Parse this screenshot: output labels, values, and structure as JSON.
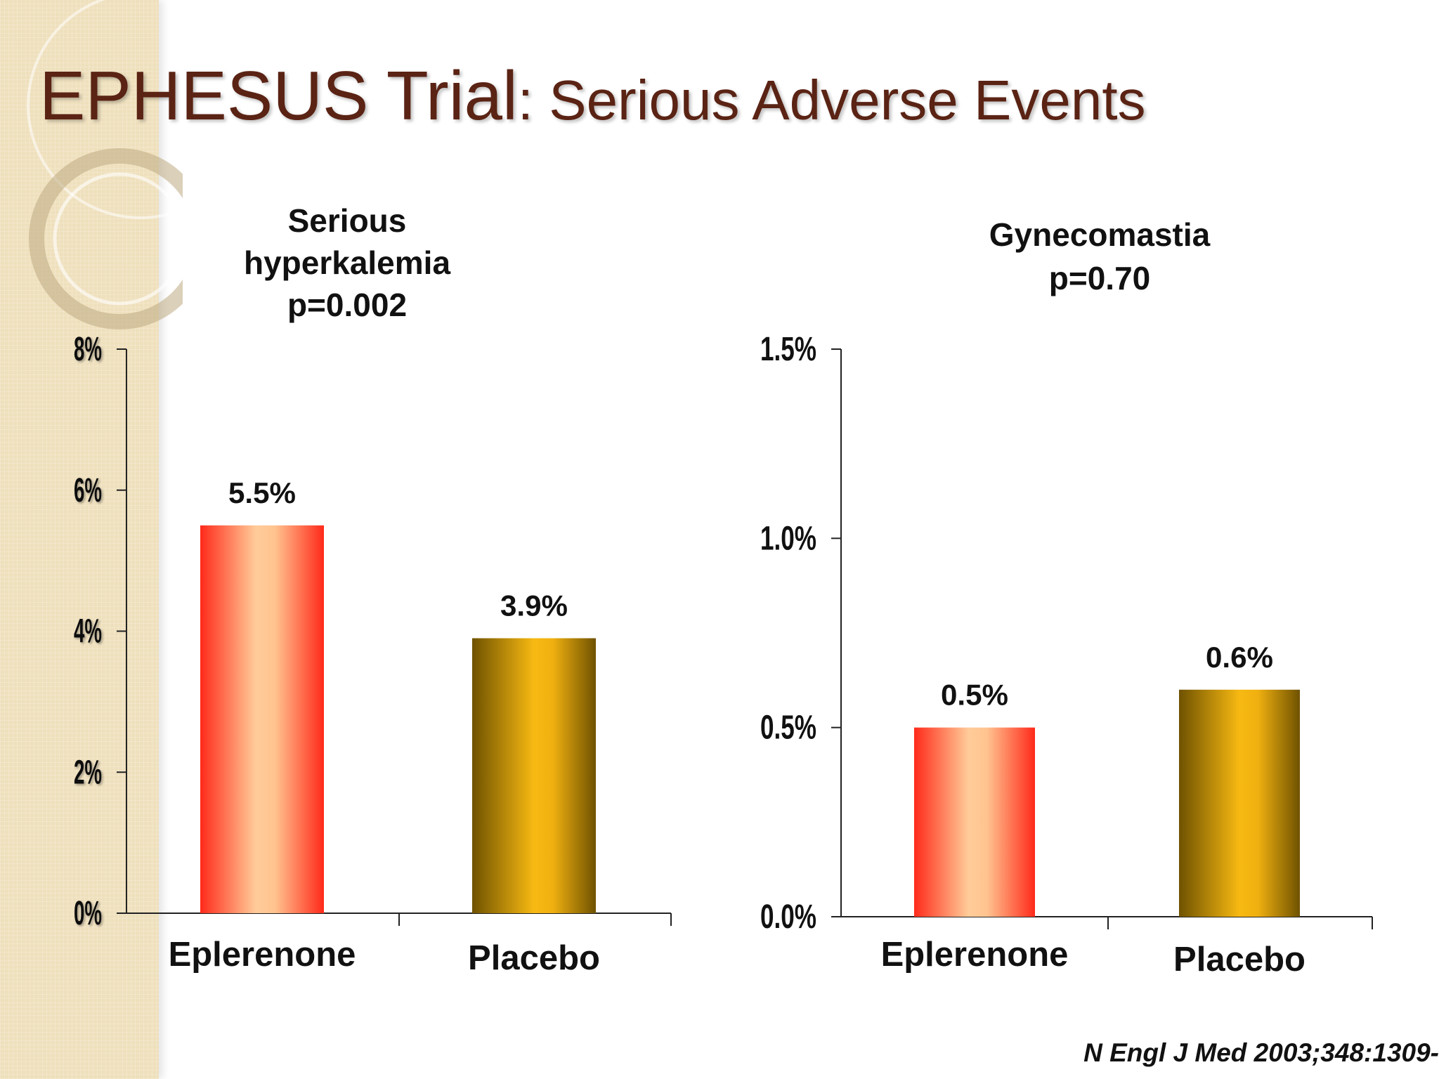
{
  "slide": {
    "title_main": "EPHESUS Trial",
    "title_sub": ": Serious Adverse Events",
    "citation": "N Engl J Med 2003;348:1309-"
  },
  "colors": {
    "title": "#5a2314",
    "eplerenone_edge": "#ff2a1a",
    "eplerenone_center": "#ffcc99",
    "placebo_edge": "#7a5a00",
    "placebo_center": "#f7b912",
    "panel": "#efe0bd"
  },
  "chart_data": [
    {
      "type": "bar",
      "title_lines": [
        "Serious",
        "hyperkalemia",
        "p=0.002"
      ],
      "categories": [
        "Eplerenone",
        "Placebo"
      ],
      "values": [
        5.5,
        3.9
      ],
      "value_labels": [
        "5.5%",
        "3.9%"
      ],
      "ylim": [
        0,
        8
      ],
      "yticks": [
        0,
        2,
        4,
        6,
        8
      ],
      "ytick_labels": [
        "0%",
        "2%",
        "4%",
        "6%",
        "8%"
      ],
      "xlabel": "",
      "ylabel": "",
      "grid": false
    },
    {
      "type": "bar",
      "title_lines": [
        "Gynecomastia",
        "p=0.70"
      ],
      "categories": [
        "Eplerenone",
        "Placebo"
      ],
      "values": [
        0.5,
        0.6
      ],
      "value_labels": [
        "0.5%",
        "0.6%"
      ],
      "ylim": [
        0,
        1.5
      ],
      "yticks": [
        0,
        0.5,
        1.0,
        1.5
      ],
      "ytick_labels": [
        "0.0%",
        "0.5%",
        "1.0%",
        "1.5%"
      ],
      "xlabel": "",
      "ylabel": "",
      "grid": false
    }
  ]
}
